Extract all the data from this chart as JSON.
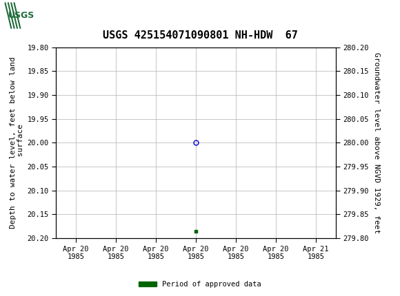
{
  "title": "USGS 425154071090801 NH-HDW  67",
  "header_color": "#1e6b3a",
  "bg_color": "#ffffff",
  "plot_bg_color": "#ffffff",
  "grid_color": "#b0b0b0",
  "ylabel_left": "Depth to water level, feet below land\n surface",
  "ylabel_right": "Groundwater level above NGVD 1929, feet",
  "ylim_left_top": 19.8,
  "ylim_left_bottom": 20.2,
  "ylim_right_top": 280.2,
  "ylim_right_bottom": 279.8,
  "yticks_left": [
    19.8,
    19.85,
    19.9,
    19.95,
    20.0,
    20.05,
    20.1,
    20.15,
    20.2
  ],
  "yticks_right": [
    280.2,
    280.15,
    280.1,
    280.05,
    280.0,
    279.95,
    279.9,
    279.85,
    279.8
  ],
  "data_point_x": 3.0,
  "data_point_y": 20.0,
  "data_point_color": "#0000cc",
  "data_point_marker": "o",
  "data_point_size": 5,
  "green_square_x": 3.0,
  "green_square_y": 20.185,
  "green_color": "#006400",
  "xtick_labels": [
    "Apr 20\n1985",
    "Apr 20\n1985",
    "Apr 20\n1985",
    "Apr 20\n1985",
    "Apr 20\n1985",
    "Apr 20\n1985",
    "Apr 21\n1985"
  ],
  "xtick_positions": [
    0,
    1,
    2,
    3,
    4,
    5,
    6
  ],
  "legend_label": "Period of approved data",
  "font_family": "monospace",
  "title_fontsize": 11,
  "tick_fontsize": 7.5,
  "label_fontsize": 8
}
